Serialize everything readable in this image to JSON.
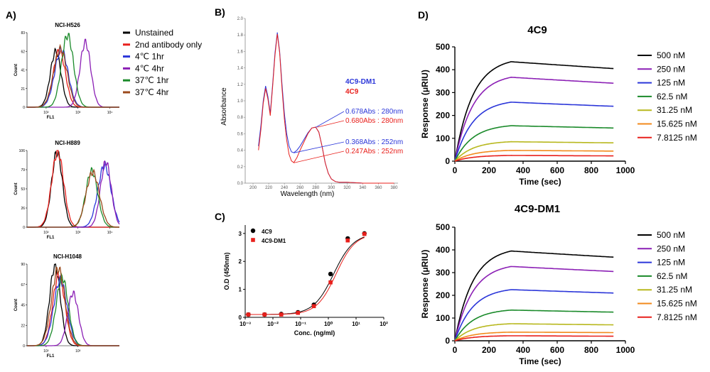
{
  "panels": {
    "A": "A)",
    "B": "B)",
    "C": "C)",
    "D": "D)"
  },
  "chart_data": [
    {
      "id": "A",
      "type": "line",
      "xlabel": "FL1",
      "ylabel": "Count",
      "xscale": "log",
      "legend": {
        "placement": "right",
        "entries": [
          "Unstained",
          "2nd antibody only",
          "4℃ 1hr",
          "4℃ 4hr",
          "37℃ 1hr",
          "37℃ 4hr"
        ],
        "colors": [
          "#000000",
          "#e8201c",
          "#2b36d9",
          "#8b1fb5",
          "#1a8a2a",
          "#9b4a1c"
        ]
      },
      "subplots": [
        {
          "title": "NCI-H526",
          "yticks": [
            "0",
            "21",
            "41",
            "62",
            "83"
          ],
          "xticks": [
            "10²",
            "10³",
            "10⁴"
          ],
          "peaks": [
            [
              "Unstained",
              200,
              62
            ],
            [
              "2nd antibody only",
              260,
              63
            ],
            [
              "4℃ 1hr",
              300,
              64
            ],
            [
              "4℃ 4hr",
              1700,
              72
            ],
            [
              "37℃ 1hr",
              470,
              80
            ],
            [
              "37℃ 4hr",
              280,
              65
            ]
          ]
        },
        {
          "title": "NCI-H889",
          "yticks": [
            "0",
            "26",
            "53",
            "79",
            "106"
          ],
          "xticks": [
            "10²",
            "10³",
            "10⁴"
          ],
          "peaks": [
            [
              "Unstained",
              220,
              104
            ],
            [
              "2nd antibody only",
              230,
              104
            ],
            [
              "4℃ 1hr",
              6800,
              85
            ],
            [
              "4℃ 4hr",
              7500,
              90
            ],
            [
              "37℃ 1hr",
              2700,
              78
            ],
            [
              "37℃ 4hr",
              2900,
              76
            ]
          ]
        },
        {
          "title": "NCI-H1048",
          "yticks": [
            "0",
            "22",
            "45",
            "67",
            "90"
          ],
          "xticks": [
            "10²",
            "10³"
          ],
          "peaks": [
            [
              "Unstained",
              190,
              88
            ],
            [
              "2nd antibody only",
              250,
              78
            ],
            [
              "4℃ 1hr",
              280,
              72
            ],
            [
              "4℃ 4hr",
              700,
              58
            ],
            [
              "37℃ 1hr",
              320,
              75
            ],
            [
              "37℃ 4hr",
              240,
              85
            ]
          ]
        }
      ]
    },
    {
      "id": "B",
      "type": "line",
      "xlabel": "Wavelength (nm)",
      "ylabel": "Absorbance",
      "xlim": [
        190,
        385
      ],
      "ylim": [
        0,
        2.0
      ],
      "xticks": [
        "200",
        "220",
        "240",
        "260",
        "280",
        "300",
        "320",
        "340",
        "360",
        "380"
      ],
      "yticks": [
        "0.0",
        "0.2",
        "0.4",
        "0.6",
        "0.8",
        "1.0",
        "1.2",
        "1.4",
        "1.6",
        "1.8",
        "2.0"
      ],
      "series": [
        {
          "name": "4C9-DM1",
          "color": "#2b36d9",
          "x": [
            207,
            210,
            213,
            216,
            219,
            222,
            225,
            228,
            231,
            234,
            237,
            240,
            243,
            246,
            249,
            252,
            256,
            260,
            265,
            270,
            275,
            280,
            284,
            288,
            292,
            296,
            300,
            305,
            310,
            320,
            340,
            360,
            380
          ],
          "y": [
            0.45,
            0.7,
            1.0,
            1.18,
            1.05,
            0.85,
            1.2,
            1.58,
            1.83,
            1.6,
            1.2,
            0.85,
            0.6,
            0.45,
            0.38,
            0.37,
            0.4,
            0.45,
            0.53,
            0.61,
            0.67,
            0.68,
            0.62,
            0.45,
            0.25,
            0.12,
            0.05,
            0.02,
            0.01,
            0.01,
            0.0,
            0.0,
            0.0
          ]
        },
        {
          "name": "4C9",
          "color": "#e8201c",
          "x": [
            207,
            210,
            213,
            216,
            219,
            222,
            225,
            228,
            231,
            234,
            237,
            240,
            243,
            246,
            249,
            252,
            256,
            260,
            265,
            270,
            275,
            280,
            284,
            288,
            292,
            296,
            300,
            305,
            310,
            320,
            340,
            360,
            380
          ],
          "y": [
            0.4,
            0.65,
            0.97,
            1.15,
            1.02,
            0.82,
            1.17,
            1.55,
            1.81,
            1.58,
            1.15,
            0.78,
            0.52,
            0.35,
            0.27,
            0.25,
            0.31,
            0.4,
            0.5,
            0.6,
            0.67,
            0.68,
            0.62,
            0.45,
            0.25,
            0.12,
            0.05,
            0.02,
            0.01,
            0.01,
            0.0,
            0.0,
            0.0
          ]
        }
      ],
      "annotations": [
        {
          "text": "0.678Abs : 280nm",
          "color": "#2b36d9"
        },
        {
          "text": "0.680Abs : 280nm",
          "color": "#e8201c"
        },
        {
          "text": "0.368Abs : 252nm",
          "color": "#2b36d9"
        },
        {
          "text": "0.247Abs : 252nm",
          "color": "#e8201c"
        }
      ]
    },
    {
      "id": "C",
      "type": "scatter",
      "xlabel": "Conc. (ng/ml)",
      "ylabel": "O.D (450nm)",
      "xscale": "log",
      "xlim": [
        0.001,
        100
      ],
      "ylim": [
        0,
        3.3
      ],
      "xticks": [
        "10⁻³",
        "10⁻²",
        "10⁻¹",
        "10⁰",
        "10¹",
        "10²"
      ],
      "yticks": [
        "0",
        "1",
        "2",
        "3"
      ],
      "legend": {
        "placement": "top-left"
      },
      "series": [
        {
          "name": "4C9",
          "color": "#000000",
          "marker": "circle",
          "x": [
            0.0013,
            0.005,
            0.02,
            0.08,
            0.3,
            1.2,
            5,
            20
          ],
          "y": [
            0.1,
            0.1,
            0.12,
            0.18,
            0.45,
            1.55,
            2.82,
            3.0
          ]
        },
        {
          "name": "4C9-DM1",
          "color": "#e8201c",
          "marker": "square",
          "x": [
            0.0013,
            0.005,
            0.02,
            0.08,
            0.3,
            1.2,
            5,
            20
          ],
          "y": [
            0.1,
            0.1,
            0.1,
            0.16,
            0.4,
            1.25,
            2.75,
            2.98
          ]
        }
      ]
    },
    {
      "id": "D",
      "type": "line",
      "xlabel": "Time (sec)",
      "ylabel": "Response (μRIU)",
      "xlim": [
        0,
        1000
      ],
      "ylim": [
        0,
        500
      ],
      "xticks": [
        "0",
        "200",
        "400",
        "600",
        "800",
        "1000"
      ],
      "yticks": [
        "0",
        "100",
        "200",
        "300",
        "400",
        "500"
      ],
      "legend": {
        "placement": "right"
      },
      "subplots": [
        {
          "title": "4C9",
          "series": [
            {
              "name": "500 nM",
              "color": "#000000",
              "peak": 435,
              "end": 405
            },
            {
              "name": "250 nM",
              "color": "#8b1fb5",
              "peak": 367,
              "end": 341
            },
            {
              "name": "125 nM",
              "color": "#2b36d9",
              "peak": 258,
              "end": 240
            },
            {
              "name": "62.5 nM",
              "color": "#1a8a2a",
              "peak": 155,
              "end": 145
            },
            {
              "name": "31.25 nM",
              "color": "#b8b81e",
              "peak": 85,
              "end": 80
            },
            {
              "name": "15.625 nM",
              "color": "#f28a1c",
              "peak": 47,
              "end": 44
            },
            {
              "name": "7.8125 nM",
              "color": "#e8201c",
              "peak": 25,
              "end": 23
            }
          ]
        },
        {
          "title": "4C9-DM1",
          "series": [
            {
              "name": "500 nM",
              "color": "#000000",
              "peak": 395,
              "end": 368
            },
            {
              "name": "250 nM",
              "color": "#8b1fb5",
              "peak": 327,
              "end": 305
            },
            {
              "name": "125 nM",
              "color": "#2b36d9",
              "peak": 225,
              "end": 210
            },
            {
              "name": "62.5 nM",
              "color": "#1a8a2a",
              "peak": 135,
              "end": 126
            },
            {
              "name": "31.25 nM",
              "color": "#b8b81e",
              "peak": 75,
              "end": 70
            },
            {
              "name": "15.625 nM",
              "color": "#f28a1c",
              "peak": 38,
              "end": 36
            },
            {
              "name": "7.8125 nM",
              "color": "#e8201c",
              "peak": 22,
              "end": 20
            }
          ]
        }
      ]
    }
  ]
}
